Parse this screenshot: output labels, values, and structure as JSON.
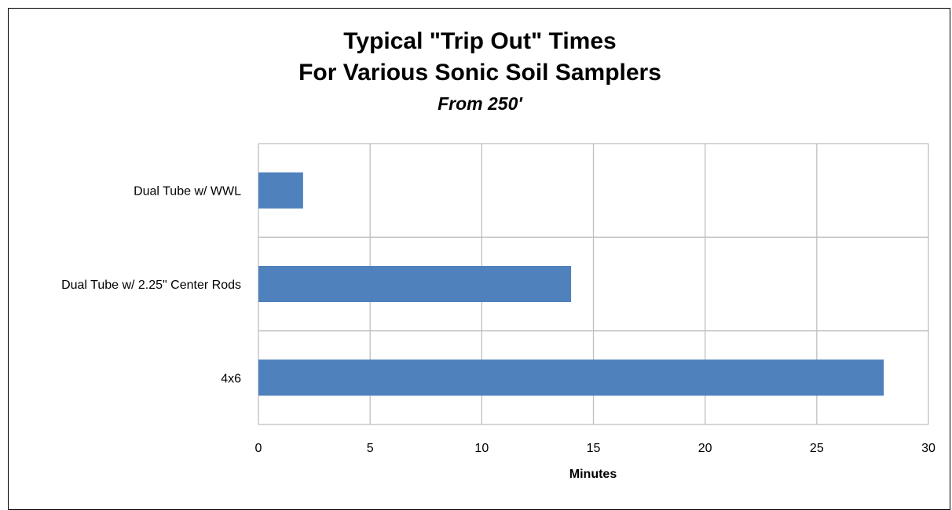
{
  "chart_data": {
    "type": "bar",
    "orientation": "horizontal",
    "title_lines": [
      "Typical \"Trip Out\" Times",
      "For Various Sonic Soil Samplers"
    ],
    "subtitle": "From 250'",
    "xlabel": "Minutes",
    "ylabel": "",
    "categories": [
      "Dual Tube w/ WWL",
      "Dual Tube w/ 2.25\" Center Rods",
      "4x6"
    ],
    "values": [
      2,
      14,
      28
    ],
    "xlim": [
      0,
      30
    ],
    "xticks": [
      0,
      5,
      10,
      15,
      20,
      25,
      30
    ],
    "xtick_labels": [
      "0",
      "5",
      "10",
      "15",
      "20",
      "25",
      "30"
    ],
    "grid": true,
    "bar_color": "#4F81BD",
    "grid_color": "#BFBFBF",
    "legend": "none"
  }
}
